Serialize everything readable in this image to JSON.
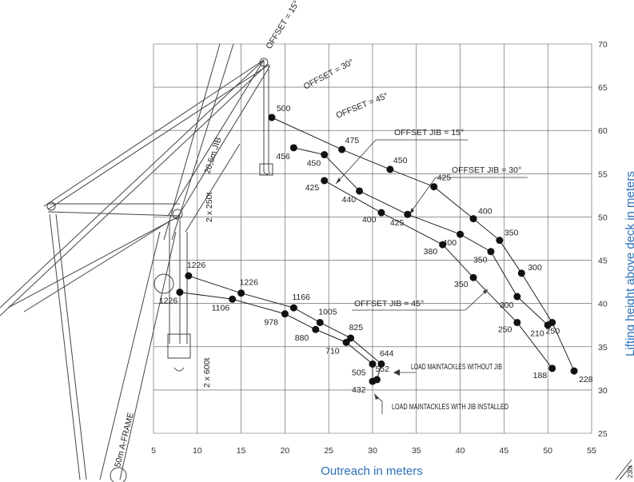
{
  "chart_data": {
    "type": "scatter",
    "xlabel": "Outreach in meters",
    "ylabel": "Lifting height above deck in meters",
    "xlim": [
      5,
      55
    ],
    "ylim": [
      25,
      70
    ],
    "x_ticks": [
      "5",
      "10",
      "15",
      "20",
      "25",
      "30",
      "35",
      "40",
      "45",
      "50",
      "55"
    ],
    "y_ticks": [
      "25",
      "30",
      "35",
      "40",
      "45",
      "50",
      "55",
      "60",
      "65",
      "70"
    ],
    "grid": true,
    "series": [
      {
        "name": "OFFSET JIB = 15°",
        "points": [
          {
            "x": 18.5,
            "y": 61.5,
            "label": "500"
          },
          {
            "x": 26.5,
            "y": 57.8,
            "label": "475"
          },
          {
            "x": 32.0,
            "y": 55.5,
            "label": "450"
          },
          {
            "x": 37.0,
            "y": 53.5,
            "label": "425"
          },
          {
            "x": 41.5,
            "y": 49.8,
            "label": "400"
          },
          {
            "x": 44.5,
            "y": 47.3,
            "label": "350"
          },
          {
            "x": 47.0,
            "y": 43.5,
            "label": "300"
          },
          {
            "x": 50.5,
            "y": 37.8,
            "label": "250"
          },
          {
            "x": 53.0,
            "y": 32.2,
            "label": "228"
          }
        ]
      },
      {
        "name": "OFFSET JIB = 30°",
        "points": [
          {
            "x": 21.0,
            "y": 58.0,
            "label": "456"
          },
          {
            "x": 24.5,
            "y": 57.2,
            "label": "450"
          },
          {
            "x": 28.5,
            "y": 53.0,
            "label": "440"
          },
          {
            "x": 34.0,
            "y": 50.3,
            "label": "425"
          },
          {
            "x": 40.0,
            "y": 48.0,
            "label": "400"
          },
          {
            "x": 43.5,
            "y": 46.0,
            "label": "350"
          },
          {
            "x": 46.5,
            "y": 40.8,
            "label": "300"
          },
          {
            "x": 50.0,
            "y": 37.5,
            "label": "210"
          }
        ]
      },
      {
        "name": "OFFSET JIB = 45°",
        "points": [
          {
            "x": 24.5,
            "y": 54.2,
            "label": "425"
          },
          {
            "x": 31.0,
            "y": 50.5,
            "label": "400"
          },
          {
            "x": 38.0,
            "y": 46.8,
            "label": "380"
          },
          {
            "x": 41.5,
            "y": 43.0,
            "label": "350"
          },
          {
            "x": 46.5,
            "y": 37.8,
            "label": "250"
          },
          {
            "x": 50.5,
            "y": 32.5,
            "label": "188"
          }
        ]
      },
      {
        "name": "LOAD MAINTACKLES WITHOUT JIB",
        "points": [
          {
            "x": 9.0,
            "y": 43.2,
            "label": "1226"
          },
          {
            "x": 15.0,
            "y": 41.2,
            "label": "1226"
          },
          {
            "x": 21.0,
            "y": 39.5,
            "label": "1166"
          },
          {
            "x": 24.0,
            "y": 37.8,
            "label": "1005"
          },
          {
            "x": 27.5,
            "y": 36.0,
            "label": "825"
          },
          {
            "x": 31.0,
            "y": 33.0,
            "label": "644"
          },
          {
            "x": 30.5,
            "y": 31.2,
            "label": "552"
          }
        ]
      },
      {
        "name": "LOAD MAINTACKLES WITH JIB INSTALLED",
        "points": [
          {
            "x": 8.0,
            "y": 41.3,
            "label": "1226"
          },
          {
            "x": 14.0,
            "y": 40.5,
            "label": "1106"
          },
          {
            "x": 20.0,
            "y": 38.8,
            "label": "978"
          },
          {
            "x": 23.5,
            "y": 37.0,
            "label": "880"
          },
          {
            "x": 27.0,
            "y": 35.5,
            "label": "710"
          },
          {
            "x": 30.0,
            "y": 33.0,
            "label": "505"
          },
          {
            "x": 30.0,
            "y": 31.0,
            "label": "432"
          }
        ]
      }
    ],
    "annotations": [
      "OFFSET = 15°",
      "OFFSET = 30°",
      "OFFSET = 45°",
      "20,5m JIB",
      "2 x 250t",
      "2 x 600t",
      "50m A-FRAME",
      "230t"
    ]
  }
}
